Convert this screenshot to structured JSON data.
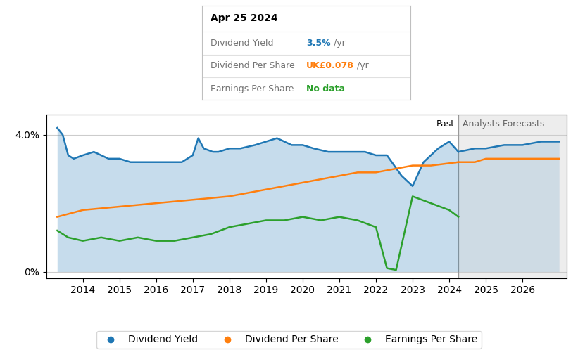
{
  "chart_data": {
    "type": "line",
    "xlim": [
      2013.0,
      2027.2
    ],
    "ylim": [
      -0.002,
      0.046
    ],
    "xticks": [
      2014,
      2015,
      2016,
      2017,
      2018,
      2019,
      2020,
      2021,
      2022,
      2023,
      2024,
      2025,
      2026
    ],
    "yticks": [
      {
        "value": 0.0,
        "label": "0%"
      },
      {
        "value": 0.04,
        "label": "4.0%"
      }
    ],
    "grid": true,
    "legend": "lower center",
    "divider": {
      "x": 2024.25,
      "left_label": "Past",
      "right_label": "Analysts Forecasts"
    },
    "tooltip": {
      "title": "Apr 25 2024",
      "rows": [
        {
          "label": "Dividend Yield",
          "value": "3.5%",
          "unit": "/yr"
        },
        {
          "label": "Dividend Per Share",
          "value": "UK£0.078",
          "unit": "/yr"
        },
        {
          "label": "Earnings Per Share",
          "value": "No data"
        }
      ]
    },
    "series": [
      {
        "name": "Dividend Yield",
        "type": "area",
        "x": [
          2013.3,
          2013.45,
          2013.6,
          2013.75,
          2014.0,
          2014.3,
          2014.7,
          2015.0,
          2015.3,
          2015.7,
          2016.0,
          2016.3,
          2016.5,
          2016.7,
          2017.0,
          2017.15,
          2017.3,
          2017.55,
          2017.7,
          2018.0,
          2018.3,
          2018.7,
          2019.0,
          2019.3,
          2019.5,
          2019.7,
          2020.0,
          2020.3,
          2020.7,
          2021.0,
          2021.3,
          2021.7,
          2022.0,
          2022.3,
          2022.7,
          2023.0,
          2023.3,
          2023.7,
          2024.0,
          2024.25
        ],
        "values": [
          0.042,
          0.04,
          0.034,
          0.033,
          0.034,
          0.035,
          0.033,
          0.033,
          0.032,
          0.032,
          0.032,
          0.032,
          0.032,
          0.032,
          0.034,
          0.039,
          0.036,
          0.035,
          0.035,
          0.036,
          0.036,
          0.037,
          0.038,
          0.039,
          0.038,
          0.037,
          0.037,
          0.036,
          0.035,
          0.035,
          0.035,
          0.035,
          0.034,
          0.034,
          0.028,
          0.025,
          0.032,
          0.036,
          0.038,
          0.035
        ],
        "forecast": {
          "x": [
            2024.25,
            2024.7,
            2025.0,
            2025.5,
            2026.0,
            2026.5,
            2027.0
          ],
          "values": [
            0.035,
            0.036,
            0.036,
            0.037,
            0.037,
            0.038,
            0.038
          ]
        }
      },
      {
        "name": "Dividend Per Share",
        "type": "line",
        "x": [
          2013.3,
          2014.0,
          2015.0,
          2016.0,
          2017.0,
          2018.0,
          2019.0,
          2019.5,
          2020.0,
          2020.5,
          2021.0,
          2021.5,
          2022.0,
          2022.5,
          2023.0,
          2023.5,
          2024.25
        ],
        "values": [
          0.016,
          0.018,
          0.019,
          0.02,
          0.021,
          0.022,
          0.024,
          0.025,
          0.026,
          0.027,
          0.028,
          0.029,
          0.029,
          0.03,
          0.031,
          0.031,
          0.032
        ],
        "forecast": {
          "x": [
            2024.25,
            2024.7,
            2025.0,
            2025.5,
            2026.0,
            2026.5,
            2027.0
          ],
          "values": [
            0.032,
            0.032,
            0.033,
            0.033,
            0.033,
            0.033,
            0.033
          ]
        }
      },
      {
        "name": "Earnings Per Share",
        "type": "line",
        "x": [
          2013.3,
          2013.6,
          2014.0,
          2014.5,
          2015.0,
          2015.5,
          2016.0,
          2016.5,
          2017.0,
          2017.5,
          2018.0,
          2018.5,
          2019.0,
          2019.5,
          2020.0,
          2020.5,
          2021.0,
          2021.5,
          2022.0,
          2022.3,
          2022.55,
          2023.0,
          2023.5,
          2024.0,
          2024.25
        ],
        "values": [
          0.012,
          0.01,
          0.009,
          0.01,
          0.009,
          0.01,
          0.009,
          0.009,
          0.01,
          0.011,
          0.013,
          0.014,
          0.015,
          0.015,
          0.016,
          0.015,
          0.016,
          0.015,
          0.013,
          0.001,
          0.0005,
          0.022,
          0.02,
          0.018,
          0.016
        ]
      }
    ]
  }
}
